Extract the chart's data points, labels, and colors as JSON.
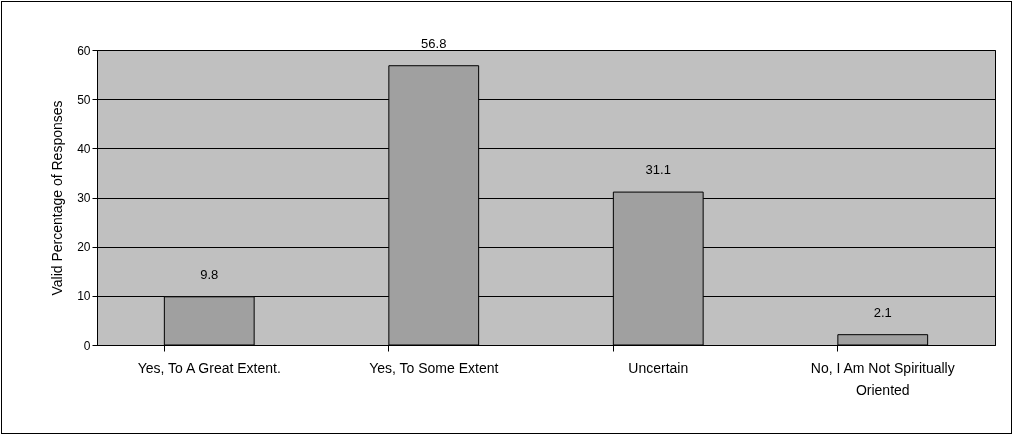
{
  "chart_data": {
    "type": "bar",
    "ylabel": "Valid Percentage of Responses",
    "categories": [
      "Yes, To A Great Extent.",
      "Yes, To Some Extent",
      "Uncertain",
      "No, I Am Not Spiritually Oriented"
    ],
    "values": [
      9.8,
      56.8,
      31.1,
      2.1
    ],
    "color": "#a0a0a0",
    "ylim": [
      0,
      60
    ],
    "yticks": [
      0,
      10,
      20,
      30,
      40,
      50,
      60
    ],
    "grid": "y",
    "data_labels": true
  }
}
